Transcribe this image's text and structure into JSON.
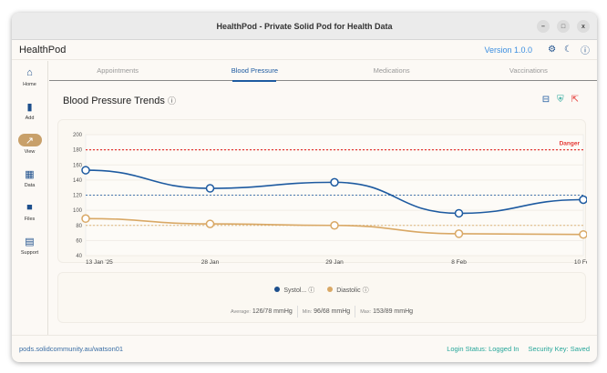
{
  "window": {
    "title": "HealthPod - Private Solid Pod for Health Data",
    "min": "–",
    "max": "□",
    "close": "x"
  },
  "app": {
    "title": "HealthPod",
    "version": "Version 1.0.0"
  },
  "sidebar": {
    "items": [
      {
        "label": "Home",
        "icon": "⌂"
      },
      {
        "label": "Add",
        "icon": "📋"
      },
      {
        "label": "View",
        "icon": "↗"
      },
      {
        "label": "Data",
        "icon": "▦"
      },
      {
        "label": "Files",
        "icon": "■"
      },
      {
        "label": "Support",
        "icon": "▤"
      }
    ]
  },
  "tabs": [
    "Appointments",
    "Blood Pressure",
    "Medications",
    "Vaccinations"
  ],
  "page": {
    "title": "Blood Pressure Trends",
    "info": "ⓘ"
  },
  "chart_data": {
    "type": "line",
    "categories": [
      "13 Jan '25",
      "28 Jan",
      "29 Jan",
      "8 Feb",
      "10 Feb"
    ],
    "series": [
      {
        "name": "Systol...",
        "color": "#1d5aa0",
        "values": [
          153,
          129,
          137,
          96,
          114
        ]
      },
      {
        "name": "Diastolic",
        "color": "#d9a865",
        "values": [
          89,
          82,
          80,
          69,
          68
        ]
      }
    ],
    "ylim": [
      40,
      200
    ],
    "yticks": [
      40,
      60,
      80,
      100,
      120,
      140,
      160,
      180,
      200
    ],
    "reference_lines": [
      {
        "value": 180,
        "label": "Danger",
        "color": "#e53935"
      },
      {
        "value": 120,
        "color": "#1d5aa0"
      },
      {
        "value": 80,
        "color": "#d9a865"
      }
    ],
    "legend": "bottom"
  },
  "stats": [
    {
      "k": "Average:",
      "v": "126/78 mmHg"
    },
    {
      "k": "Min:",
      "v": "96/68 mmHg"
    },
    {
      "k": "Max:",
      "v": "153/89 mmHg"
    }
  ],
  "footer": {
    "pod": "pods.solidcommunity.au/watson01",
    "login": "Login Status: Logged In",
    "key": "Security Key: Saved"
  }
}
